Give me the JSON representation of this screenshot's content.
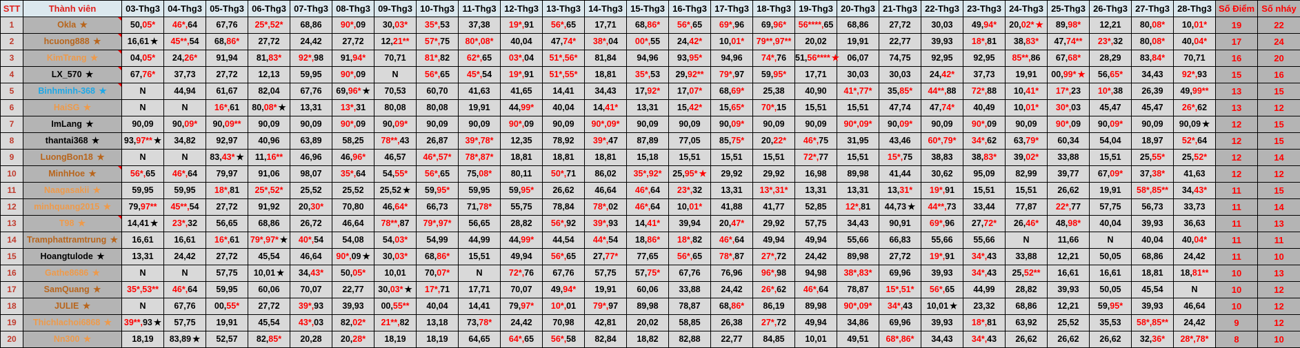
{
  "header": {
    "stt": "STT",
    "member": "Thành viên",
    "dates": [
      "03-Thg3",
      "04-Thg3",
      "05-Thg3",
      "06-Thg3",
      "07-Thg3",
      "08-Thg3",
      "09-Thg3",
      "10-Thg3",
      "11-Thg3",
      "12-Thg3",
      "13-Thg3",
      "14-Thg3",
      "15-Thg3",
      "16-Thg3",
      "17-Thg3",
      "18-Thg3",
      "19-Thg3",
      "20-Thg3",
      "21-Thg3",
      "22-Thg3",
      "23-Thg3",
      "24-Thg3",
      "25-Thg3",
      "26-Thg3",
      "27-Thg3",
      "28-Thg3"
    ],
    "points": "Số Điểm",
    "hits": "Số nháy"
  },
  "colors": {
    "brown": "#b8651c",
    "orange": "#ee9a4a",
    "black": "#000000",
    "cyan": "#1ea7e6",
    "hit_red": "#ff0000"
  },
  "legend_note": "★ = black star marker, ☆ = red star marker; parts containing * are shown in red",
  "rows": [
    {
      "stt": "1",
      "name": "Okla",
      "color": "brown",
      "flag": true,
      "cells": [
        "50,05*",
        "46*,64",
        "67,76",
        "25*,52*",
        "68,86",
        "90*,09",
        "30,03*",
        "35*,53",
        "37,38",
        "19*,91",
        "56*,65",
        "17,71",
        "68,86*",
        "56*,65",
        "69*,96",
        "69,96*",
        "56****,65",
        "68,86",
        "27,72",
        "30,03",
        "49,94*",
        "20,02* ☆",
        "89,98*",
        "12,21",
        "80,08*",
        "10,01*"
      ],
      "points": "19",
      "hits": "22"
    },
    {
      "stt": "2",
      "name": "hcuong888",
      "color": "brown",
      "flag": true,
      "cells": [
        "16,61 ★",
        "45**,54",
        "68,86*",
        "27,72",
        "24,42",
        "27,72",
        "12,21**",
        "57*,75",
        "80*,08*",
        "40,04",
        "47,74*",
        "38*,04",
        "00*,55",
        "24,42*",
        "10,01*",
        "79**,97**",
        "20,02",
        "19,91",
        "22,77",
        "39,93",
        "18*,81",
        "38,83*",
        "47,74**",
        "23*,32",
        "80,08*",
        "40,04*"
      ],
      "points": "17",
      "hits": "24"
    },
    {
      "stt": "3",
      "name": "KimTrang",
      "color": "orange",
      "flag": true,
      "cells": [
        "04,05*",
        "24,26*",
        "91,94",
        "81,83*",
        "92*,98",
        "91,94*",
        "70,71",
        "81*,82",
        "62*,65",
        "03*,04",
        "51*,56*",
        "81,84",
        "94,96",
        "93,95*",
        "94,96",
        "74*,76",
        "51,56**** ☆",
        "06,07",
        "74,75",
        "92,95",
        "92,95",
        "85**,86",
        "67,68*",
        "28,29",
        "83,84*",
        "70,71"
      ],
      "points": "16",
      "hits": "20"
    },
    {
      "stt": "4",
      "name": "LX_570",
      "color": "black",
      "flag": true,
      "cells": [
        "67,76*",
        "37,73",
        "27,72",
        "12,13",
        "59,95",
        "90*,09",
        "N",
        "56*,65",
        "45*,54",
        "19*,91",
        "51*,55*",
        "18,81",
        "35*,53",
        "29,92**",
        "79*,97",
        "59,95*",
        "17,71",
        "30,03",
        "30,03",
        "24,42*",
        "37,73",
        "19,91",
        "00,99* ☆",
        "56,65*",
        "34,43",
        "92*,93"
      ],
      "points": "15",
      "hits": "16"
    },
    {
      "stt": "5",
      "name": "Binhminh-368",
      "color": "cyan",
      "flag": true,
      "cells": [
        "N",
        "44,94",
        "61,67",
        "82,04",
        "67,76",
        "69,96* ★",
        "70,53",
        "60,70",
        "41,63",
        "41,65",
        "14,41",
        "34,43",
        "17,92*",
        "17,07*",
        "68,69*",
        "25,38",
        "40,90",
        "41*,77*",
        "35,85*",
        "44**,88",
        "72*,88",
        "10,41*",
        "17*,23",
        "10*,38",
        "26,39",
        "49,99**"
      ],
      "points": "13",
      "hits": "15"
    },
    {
      "stt": "6",
      "name": "HaiSG",
      "color": "orange",
      "flag": false,
      "cells": [
        "N",
        "N",
        "16*,61",
        "80,08* ★",
        "13,31",
        "13*,31",
        "80,08",
        "80,08",
        "19,91",
        "44,99*",
        "40,04",
        "14,41*",
        "13,31",
        "15,42*",
        "15,65*",
        "70*,15",
        "15,51",
        "15,51",
        "47,74",
        "47,74*",
        "40,49",
        "10,01*",
        "30*,03",
        "45,47",
        "45,47",
        "26*,62"
      ],
      "points": "13",
      "hits": "12"
    },
    {
      "stt": "7",
      "name": "ImLang",
      "color": "black",
      "flag": false,
      "cells": [
        "90,09",
        "90,09*",
        "90,09**",
        "90,09",
        "90,09",
        "90*,09",
        "90,09*",
        "90,09",
        "90,09",
        "90*,09",
        "90,09",
        "90*,09*",
        "90,09",
        "90,09",
        "90,09*",
        "90,09",
        "90,09",
        "90*,09*",
        "90,09*",
        "90,09",
        "90*,09",
        "90,09",
        "90*,09",
        "90,09*",
        "90,09",
        "90,09 ★"
      ],
      "points": "12",
      "hits": "15"
    },
    {
      "stt": "8",
      "name": "thantai368",
      "color": "black",
      "flag": false,
      "cells": [
        "93,97** ★",
        "34,82",
        "92,97",
        "40,96",
        "63,89",
        "58,25",
        "78**,43",
        "26,87",
        "39*,78*",
        "12,35",
        "78,92",
        "39*,47",
        "87,89",
        "77,05",
        "85,75*",
        "20,22*",
        "46*,75",
        "31,95",
        "43,46",
        "60*,79*",
        "34*,62",
        "63,79*",
        "60,34",
        "54,04",
        "18,97",
        "52*,64"
      ],
      "points": "12",
      "hits": "15"
    },
    {
      "stt": "9",
      "name": "LuongBon18",
      "color": "brown",
      "flag": false,
      "cells": [
        "N",
        "N",
        "83,43* ★",
        "11,16**",
        "46,96",
        "46,96*",
        "46,57",
        "46*,57*",
        "78*,87*",
        "18,81",
        "18,81",
        "18,81",
        "15,18",
        "15,51",
        "15,51",
        "15,51",
        "72*,77",
        "15,51",
        "15*,75",
        "38,83",
        "38,83*",
        "39,02*",
        "33,88",
        "15,51",
        "25,55*",
        "25,52*"
      ],
      "points": "12",
      "hits": "14"
    },
    {
      "stt": "10",
      "name": "MinhHoe",
      "color": "brown",
      "flag": true,
      "cells": [
        "56*,65",
        "46*,64",
        "79,97",
        "91,06",
        "98,07",
        "35*,64",
        "54,55*",
        "56*,65",
        "75,08*",
        "80,11",
        "50*,71",
        "86,02",
        "35*,92*",
        "25,95* ☆",
        "29,92",
        "29,92",
        "16,98",
        "89,98",
        "41,44",
        "30,62",
        "95,09",
        "82,99",
        "39,77",
        "67,09*",
        "37,38*",
        "41,63"
      ],
      "points": "12",
      "hits": "12"
    },
    {
      "stt": "11",
      "name": "Naagasakii",
      "color": "orange",
      "flag": false,
      "cells": [
        "59,95",
        "59,95",
        "18*,81",
        "25*,52*",
        "25,52",
        "25,52",
        "25,52 ★",
        "59,95*",
        "59,95",
        "59,95*",
        "26,62",
        "46,64",
        "46*,64",
        "23*,32",
        "13,31",
        "13*,31*",
        "13,31",
        "13,31",
        "13,31*",
        "19*,91",
        "15,51",
        "15,51",
        "26,62",
        "19,91",
        "58*,85**",
        "34,43*"
      ],
      "points": "11",
      "hits": "15"
    },
    {
      "stt": "12",
      "name": "minhquang2015",
      "color": "orange",
      "flag": false,
      "cells": [
        "79,97**",
        "45**,54",
        "27,72",
        "91,92",
        "20,30*",
        "70,80",
        "46,64*",
        "66,73",
        "71,78*",
        "55,75",
        "78,84",
        "78*,02",
        "46*,64",
        "10,01*",
        "41,88",
        "41,77",
        "52,85",
        "12*,81",
        "44,73 ★",
        "44**,73",
        "33,44",
        "77,87",
        "22*,77",
        "57,75",
        "56,73",
        "33,73"
      ],
      "points": "11",
      "hits": "14"
    },
    {
      "stt": "13",
      "name": "T98",
      "color": "orange",
      "flag": true,
      "cells": [
        "14,41 ★",
        "23*,32",
        "56,65",
        "68,86",
        "26,72",
        "46,64",
        "78**,87",
        "79*,97*",
        "56,65",
        "28,82",
        "56*,92",
        "39*,93",
        "14,41*",
        "39,94",
        "20,47*",
        "29,92",
        "57,75",
        "34,43",
        "90,91",
        "69*,96",
        "27,72*",
        "26,46*",
        "48,98*",
        "40,04",
        "39,93",
        "36,63"
      ],
      "points": "11",
      "hits": "13"
    },
    {
      "stt": "14",
      "name": "Tramphattramtrung",
      "color": "brown",
      "flag": false,
      "cells": [
        "16,61",
        "16,61",
        "16*,61",
        "79*,97* ★",
        "40*,54",
        "54,08",
        "54,03*",
        "54,99",
        "44,99",
        "44,99*",
        "44,54",
        "44*,54",
        "18,86*",
        "18*,82",
        "46*,64",
        "49,94",
        "49,94",
        "55,66",
        "66,83",
        "55,66",
        "55,66",
        "N",
        "11,66",
        "N",
        "40,04",
        "40,04*"
      ],
      "points": "11",
      "hits": "11"
    },
    {
      "stt": "15",
      "name": "Hoangtulode",
      "color": "black",
      "flag": false,
      "cells": [
        "13,31",
        "24,42",
        "27,72",
        "45,54",
        "46,64",
        "90*,09 ★",
        "30,03*",
        "68,86*",
        "15,51",
        "49,94",
        "56*,65",
        "27,77*",
        "77,65",
        "56*,65",
        "78*,87",
        "27*,72",
        "24,42",
        "89,98",
        "27,72",
        "19*,91",
        "34*,43",
        "33,88",
        "12,21",
        "50,05",
        "68,86",
        "24,42"
      ],
      "points": "11",
      "hits": "10"
    },
    {
      "stt": "16",
      "name": "Gathe8686",
      "color": "orange",
      "flag": false,
      "cells": [
        "N",
        "N",
        "57,75",
        "10,01 ★",
        "34,43*",
        "50,05*",
        "10,01",
        "70,07*",
        "N",
        "72*,76",
        "67,76",
        "57,75",
        "57,75*",
        "67,76",
        "76,96",
        "96*,98",
        "94,98",
        "38*,83*",
        "69,96",
        "39,93",
        "34*,43",
        "25,52**",
        "16,61",
        "16,61",
        "18,81",
        "18,81**"
      ],
      "points": "10",
      "hits": "13"
    },
    {
      "stt": "17",
      "name": "SamQuang",
      "color": "brown",
      "flag": false,
      "cells": [
        "35*,53**",
        "46*,64",
        "59,95",
        "60,06",
        "70,07",
        "22,77",
        "30,03* ★",
        "17*,71",
        "17,71",
        "70,07",
        "49,94*",
        "19,91",
        "60,06",
        "33,88",
        "24,42",
        "26*,62",
        "46*,64",
        "78,87",
        "15*,51*",
        "56*,65",
        "44,99",
        "28,82",
        "39,93",
        "50,05",
        "45,54",
        "N"
      ],
      "points": "10",
      "hits": "12"
    },
    {
      "stt": "18",
      "name": "JULIE",
      "color": "brown",
      "flag": false,
      "cells": [
        "N",
        "67,76",
        "00,55*",
        "27,72",
        "39*,93",
        "39,93",
        "00,55**",
        "40,04",
        "14,41",
        "79,97*",
        "10*,01",
        "79*,97",
        "89,98",
        "78,87",
        "68,86*",
        "86,19",
        "89,98",
        "90*,09*",
        "34*,43",
        "10,01 ★",
        "23,32",
        "68,86",
        "12,21",
        "59,95*",
        "39,93",
        "46,64"
      ],
      "points": "10",
      "hits": "12"
    },
    {
      "stt": "19",
      "name": "Thichlachoi6868",
      "color": "orange",
      "flag": false,
      "cells": [
        "39**,93 ★",
        "57,75",
        "19,91",
        "45,54",
        "43*,03",
        "82,02*",
        "21**,82",
        "13,18",
        "73,78*",
        "24,42",
        "70,98",
        "42,81",
        "20,02",
        "58,85",
        "26,38",
        "27*,72",
        "49,94",
        "34,86",
        "69,96",
        "39,93",
        "18*,81",
        "63,92",
        "25,52",
        "35,53",
        "58*,85**",
        "24,42"
      ],
      "points": "9",
      "hits": "12"
    },
    {
      "stt": "20",
      "name": "Nn300",
      "color": "orange",
      "flag": false,
      "cells": [
        "18,19",
        "83,89 ★",
        "52,57",
        "82,85*",
        "20,28",
        "20,28*",
        "18,19",
        "18,19",
        "64,65",
        "64*,65",
        "56*,58",
        "82,84",
        "18,82",
        "82,88",
        "22,77",
        "84,85",
        "10,01",
        "49,51",
        "68*,86*",
        "34,43",
        "34*,43",
        "26,62",
        "26,62",
        "26,62",
        "32,36*",
        "28*,78*"
      ],
      "points": "8",
      "hits": "10"
    }
  ]
}
